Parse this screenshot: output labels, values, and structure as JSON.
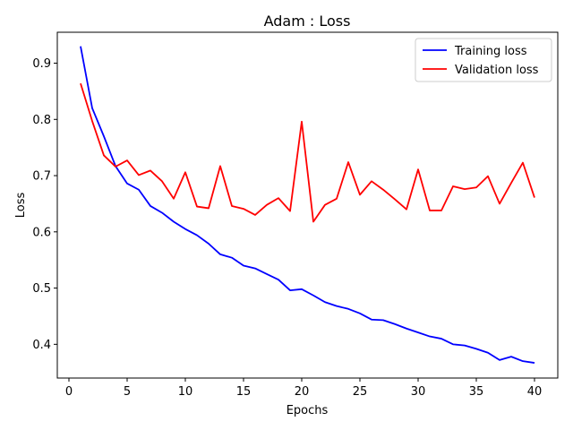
{
  "chart_data": {
    "type": "line",
    "title": "Adam : Loss",
    "xlabel": "Epochs",
    "ylabel": "Loss",
    "xlim": [
      -1,
      42
    ],
    "ylim": [
      0.34,
      0.955
    ],
    "xticks": [
      0,
      5,
      10,
      15,
      20,
      25,
      30,
      35,
      40
    ],
    "yticks": [
      0.4,
      0.5,
      0.6,
      0.7,
      0.8,
      0.9
    ],
    "grid": false,
    "legend_position": "top-right",
    "x": [
      1,
      2,
      3,
      4,
      5,
      6,
      7,
      8,
      9,
      10,
      11,
      12,
      13,
      14,
      15,
      16,
      17,
      18,
      19,
      20,
      21,
      22,
      23,
      24,
      25,
      26,
      27,
      28,
      29,
      30,
      31,
      32,
      33,
      34,
      35,
      36,
      37,
      38,
      39,
      40
    ],
    "series": [
      {
        "name": "Training loss",
        "color": "#0000ff",
        "values": [
          0.93,
          0.82,
          0.77,
          0.717,
          0.686,
          0.675,
          0.646,
          0.634,
          0.618,
          0.605,
          0.594,
          0.579,
          0.56,
          0.554,
          0.54,
          0.535,
          0.525,
          0.515,
          0.496,
          0.498,
          0.487,
          0.475,
          0.468,
          0.463,
          0.455,
          0.444,
          0.443,
          0.436,
          0.428,
          0.421,
          0.414,
          0.41,
          0.4,
          0.398,
          0.392,
          0.385,
          0.372,
          0.378,
          0.37,
          0.367
        ]
      },
      {
        "name": "Validation loss",
        "color": "#ff0000",
        "values": [
          0.864,
          0.797,
          0.736,
          0.716,
          0.727,
          0.701,
          0.709,
          0.69,
          0.659,
          0.706,
          0.645,
          0.642,
          0.717,
          0.646,
          0.641,
          0.63,
          0.648,
          0.66,
          0.637,
          0.796,
          0.618,
          0.648,
          0.659,
          0.724,
          0.666,
          0.69,
          0.675,
          0.658,
          0.64,
          0.711,
          0.638,
          0.638,
          0.681,
          0.676,
          0.679,
          0.699,
          0.65,
          0.687,
          0.723,
          0.661
        ]
      }
    ]
  }
}
